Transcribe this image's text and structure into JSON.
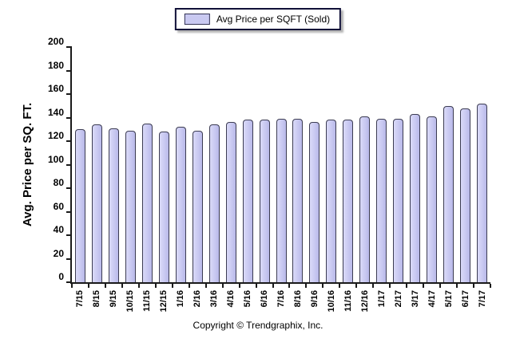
{
  "legend": {
    "label": "Avg Price per SQFT (Sold)"
  },
  "footer": {
    "copyright": "Copyright © Trendgraphix, Inc."
  },
  "chart_data": {
    "type": "bar",
    "title": "",
    "xlabel": "",
    "ylabel": "Avg. Price per SQ. FT.",
    "ylim": [
      0,
      200
    ],
    "ytick_step": 20,
    "grid": false,
    "legend_position": "top-center",
    "series_name": "Avg Price per SQFT (Sold)",
    "categories": [
      "7/15",
      "8/15",
      "9/15",
      "10/15",
      "11/15",
      "12/15",
      "1/16",
      "2/16",
      "3/16",
      "4/16",
      "5/16",
      "6/16",
      "7/16",
      "8/16",
      "9/16",
      "10/16",
      "11/16",
      "12/16",
      "1/17",
      "2/17",
      "3/17",
      "4/17",
      "5/17",
      "6/17",
      "7/17"
    ],
    "values": [
      130,
      134,
      131,
      129,
      135,
      128,
      132,
      129,
      134,
      136,
      138,
      138,
      139,
      139,
      136,
      138,
      138,
      141,
      139,
      139,
      143,
      141,
      150,
      148,
      152
    ],
    "colors": {
      "bar_fill": "#c9c9f1",
      "bar_border": "#3c3c52",
      "axis": "#1a1a1a",
      "legend_border": "#101038"
    }
  }
}
